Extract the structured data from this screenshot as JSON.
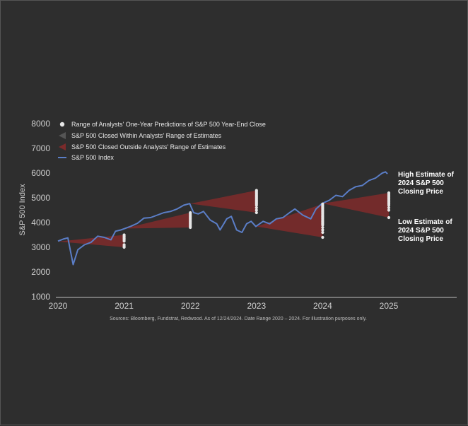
{
  "chart_data": {
    "type": "line",
    "ylabel": "S&P 500 Index",
    "xlabel": "",
    "title": "",
    "x_ticks": [
      "2020",
      "2021",
      "2022",
      "2023",
      "2024",
      "2025"
    ],
    "y_ticks": [
      "1000",
      "2000",
      "3000",
      "4000",
      "5000",
      "6000",
      "7000",
      "8000"
    ],
    "ylim": [
      1000,
      8000
    ],
    "xlim": [
      2020,
      2026
    ],
    "grid": false,
    "legend_position": "top-left",
    "legend": {
      "predictions": "Range of Analysts' One-Year Predictions of S&P 500 Year-End Close",
      "within": "S&P 500 Closed Within Analysts' Range of Estimates",
      "outside": "S&P 500 Closed Outside Analysts' Range of Estimates",
      "index": "S&P 500 Index"
    },
    "series": [
      {
        "name": "S&P 500 Index",
        "x": [
          2020.0,
          2020.08,
          2020.15,
          2020.2,
          2020.23,
          2020.3,
          2020.4,
          2020.5,
          2020.6,
          2020.7,
          2020.8,
          2020.87,
          2020.95,
          2021.0,
          2021.1,
          2021.2,
          2021.3,
          2021.4,
          2021.5,
          2021.6,
          2021.7,
          2021.8,
          2021.9,
          2021.99,
          2022.05,
          2022.12,
          2022.2,
          2022.3,
          2022.4,
          2022.45,
          2022.55,
          2022.62,
          2022.7,
          2022.78,
          2022.85,
          2022.92,
          2022.99,
          2023.1,
          2023.2,
          2023.3,
          2023.4,
          2023.5,
          2023.58,
          2023.7,
          2023.82,
          2023.9,
          2023.99,
          2024.1,
          2024.2,
          2024.3,
          2024.4,
          2024.5,
          2024.6,
          2024.7,
          2024.8,
          2024.9,
          2024.95,
          2024.98
        ],
        "values": [
          3250,
          3330,
          3380,
          2700,
          2300,
          2900,
          3100,
          3200,
          3450,
          3400,
          3300,
          3650,
          3700,
          3750,
          3850,
          3970,
          4180,
          4200,
          4300,
          4400,
          4450,
          4550,
          4700,
          4766,
          4400,
          4350,
          4450,
          4100,
          3950,
          3700,
          4150,
          4250,
          3700,
          3600,
          3950,
          4050,
          3840,
          4050,
          3950,
          4150,
          4200,
          4400,
          4550,
          4300,
          4150,
          4550,
          4770,
          4900,
          5100,
          5050,
          5300,
          5450,
          5500,
          5700,
          5800,
          6000,
          6050,
          5970
        ]
      }
    ],
    "estimate_ranges": [
      {
        "forecast_year": 2021,
        "start": 3231,
        "low": 3000,
        "high": 3500,
        "close": 3756,
        "outcome": "outside",
        "dots": [
          3000,
          3050,
          3100,
          3250,
          3300,
          3350,
          3400,
          3450,
          3500
        ]
      },
      {
        "forecast_year": 2022,
        "start": 3756,
        "low": 3800,
        "high": 4400,
        "close": 4766,
        "outcome": "outside",
        "dots": [
          3800,
          3850,
          3900,
          3950,
          4000,
          4050,
          4100,
          4150,
          4200,
          4250,
          4300,
          4350,
          4400
        ]
      },
      {
        "forecast_year": 2023,
        "start": 4766,
        "low": 4400,
        "high": 5300,
        "close": 3840,
        "outcome": "outside",
        "dots": [
          4400,
          4500,
          4600,
          4700,
          4750,
          4800,
          4850,
          4900,
          4950,
          5000,
          5050,
          5100,
          5150,
          5200,
          5250,
          5300
        ]
      },
      {
        "forecast_year": 2024,
        "start": 3840,
        "low": 3400,
        "high": 4750,
        "close": 4770,
        "outcome": "outside",
        "dots": [
          3400,
          3600,
          3700,
          3800,
          3900,
          3950,
          4000,
          4050,
          4100,
          4150,
          4200,
          4250,
          4300,
          4350,
          4400,
          4450,
          4500,
          4550,
          4600,
          4650,
          4700,
          4750
        ]
      },
      {
        "forecast_year": 2025,
        "start": 4770,
        "low": 4200,
        "high": 5200,
        "close": 5970,
        "outcome": "outside",
        "dots": [
          4200,
          4500,
          4600,
          4700,
          4750,
          4800,
          4850,
          4900,
          4950,
          5000,
          5050,
          5100,
          5150,
          5200
        ]
      }
    ],
    "annotations": {
      "high": [
        "High Estimate of",
        "2024 S&P 500",
        "Closing Price"
      ],
      "low": [
        "Low Estimate of",
        "2024 S&P 500",
        "Closing Price"
      ]
    },
    "source": "Sources: Bloomberg, Fundstrat, Redwood. As of 12/24/2024. Date Range 2020 – 2024. For illustration purposes only.",
    "colors": {
      "background": "#2e2e2e",
      "line": "#5b7ec7",
      "wedge_outside": "#7b2b2b",
      "wedge_within": "#555555",
      "dots": "#e6e6e6",
      "axis": "#bdbdbd"
    }
  }
}
